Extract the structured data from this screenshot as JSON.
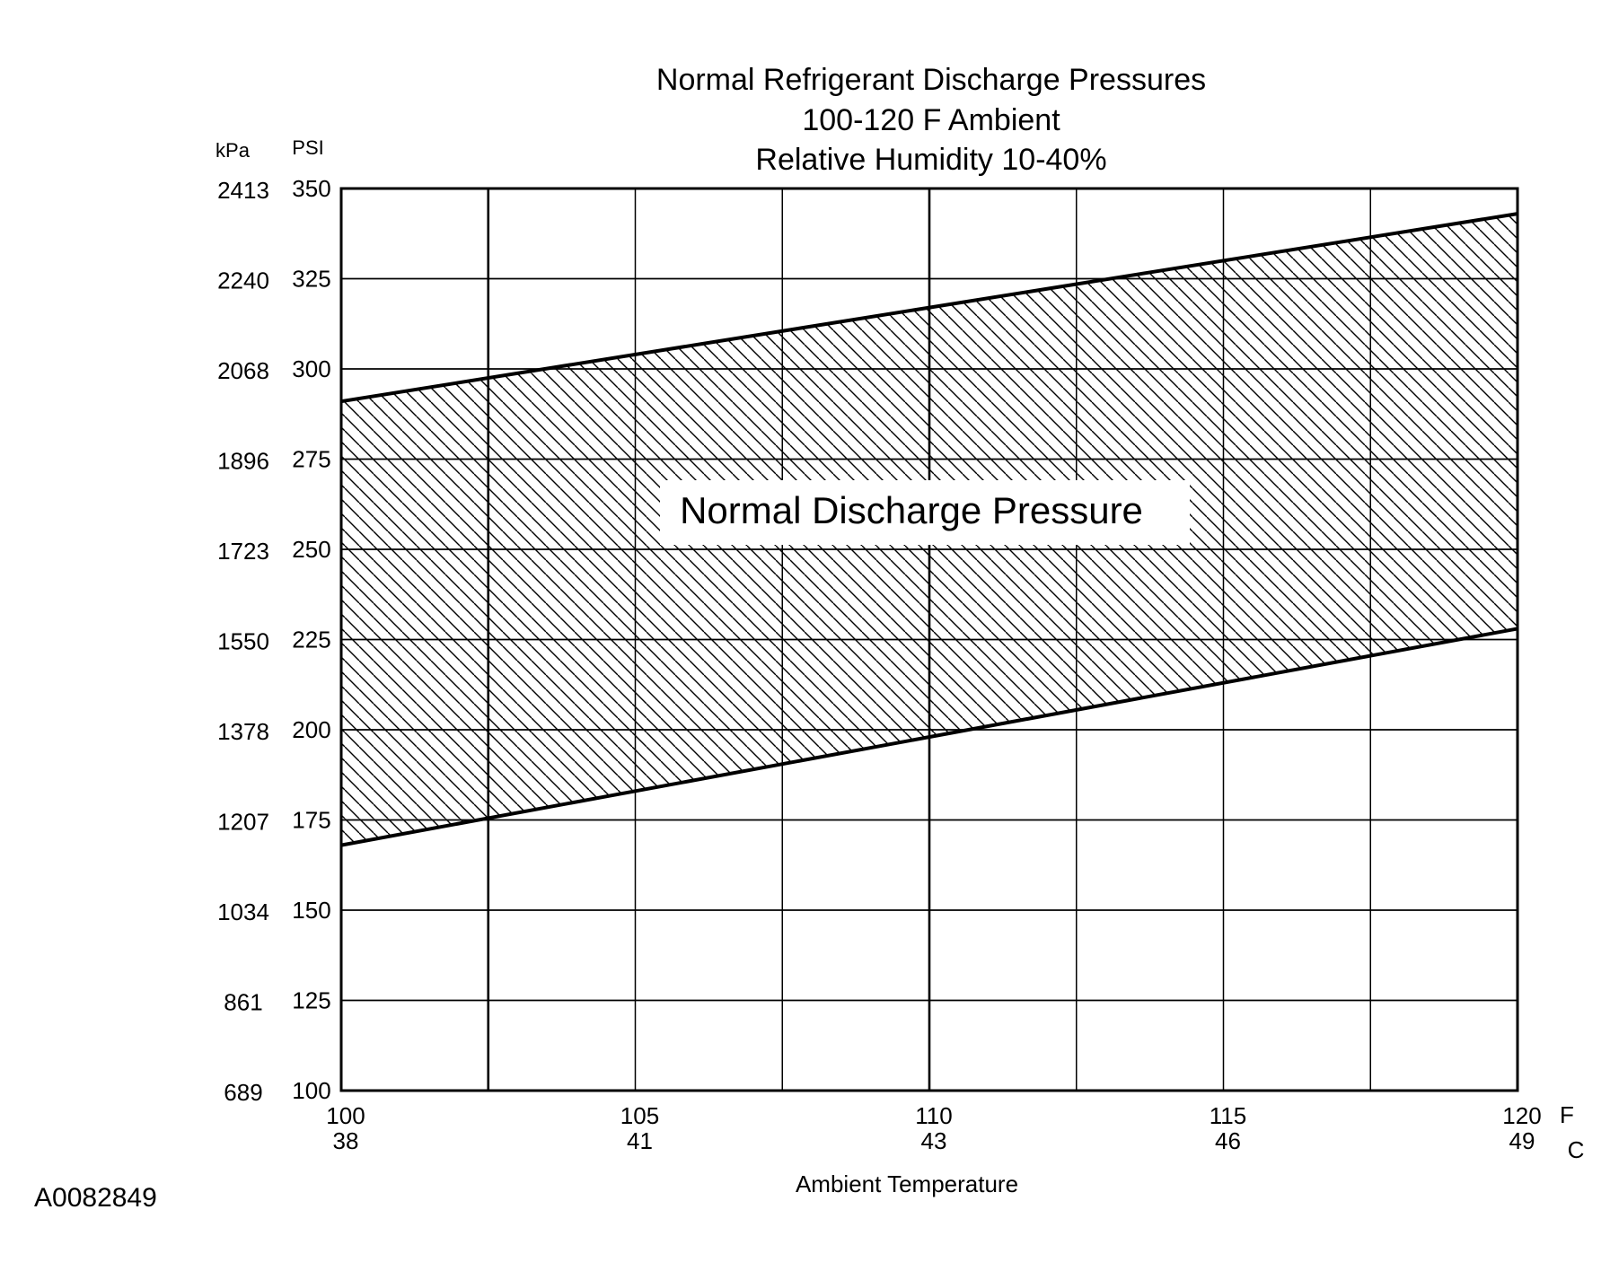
{
  "figure_id": "A0082849",
  "chart_data": {
    "type": "area",
    "title_lines": [
      "Normal  Refrigerant  Discharge  Pressures",
      "100-120 F Ambient",
      "Relative Humidity 10-40%"
    ],
    "xlabel": "Ambient Temperature",
    "x_unit_f": "F",
    "x_unit_c": "C",
    "x_ticks": [
      {
        "f": "100",
        "c": "38"
      },
      {
        "f": "105",
        "c": "41"
      },
      {
        "f": "110",
        "c": "43"
      },
      {
        "f": "115",
        "c": "46"
      },
      {
        "f": "120",
        "c": "49"
      }
    ],
    "y_unit_kpa": "kPa",
    "y_unit_psi": "PSI",
    "y_ticks": [
      {
        "psi": "100",
        "kpa": "689"
      },
      {
        "psi": "125",
        "kpa": "861"
      },
      {
        "psi": "150",
        "kpa": "1034"
      },
      {
        "psi": "175",
        "kpa": "1207"
      },
      {
        "psi": "200",
        "kpa": "1378"
      },
      {
        "psi": "225",
        "kpa": "1550"
      },
      {
        "psi": "250",
        "kpa": "1723"
      },
      {
        "psi": "275",
        "kpa": "1896"
      },
      {
        "psi": "300",
        "kpa": "2068"
      },
      {
        "psi": "325",
        "kpa": "2240"
      },
      {
        "psi": "350",
        "kpa": "2413"
      }
    ],
    "xlim": [
      100,
      120
    ],
    "ylim": [
      100,
      350
    ],
    "grid": true,
    "band_label": "Normal Discharge Pressure",
    "series": [
      {
        "x": [
          100,
          120
        ],
        "values": [
          291,
          343
        ]
      },
      {
        "x": [
          100,
          120
        ],
        "values": [
          168,
          228
        ]
      }
    ]
  }
}
